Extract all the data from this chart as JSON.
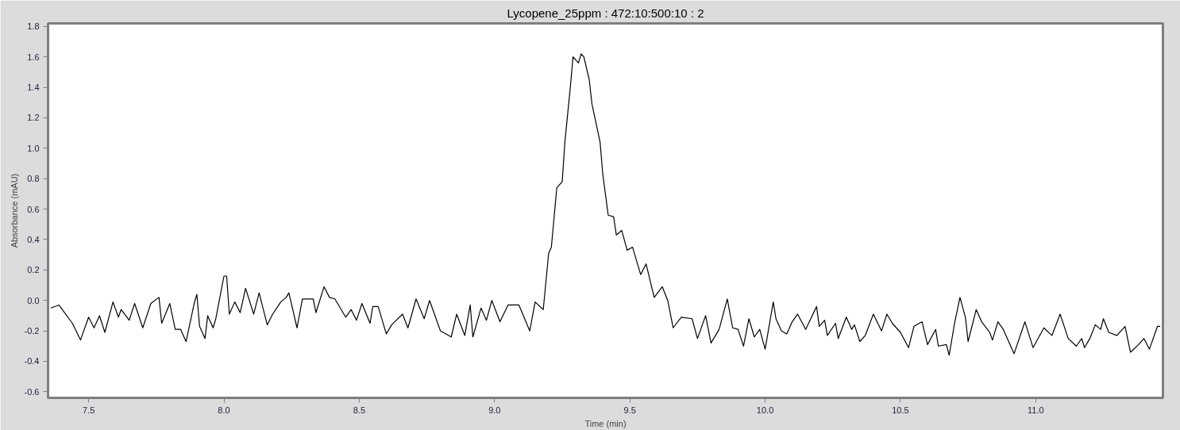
{
  "chart_data": {
    "type": "line",
    "title": "Lycopene_25ppm : 472:10:500:10 : 2",
    "xlabel": "Time (min)",
    "ylabel": "Absorbance (mAU)",
    "xlim": [
      7.35,
      11.47
    ],
    "ylim": [
      -0.64,
      1.82
    ],
    "xticks": [
      7.5,
      {
        "value": 8,
        "label": "8.0"
      },
      8.5,
      {
        "value": 9,
        "label": "9.0"
      },
      9.5,
      {
        "value": 10,
        "label": "10.0"
      },
      10.5,
      {
        "value": 11,
        "label": "11.0"
      }
    ],
    "yticks": [
      -0.6,
      -0.4,
      -0.2,
      {
        "value": 0,
        "label": "0.0"
      },
      0.2,
      0.4,
      0.6,
      0.8,
      {
        "value": 1,
        "label": "1.0"
      },
      1.2,
      1.4,
      1.6,
      1.8
    ],
    "grid": false,
    "line_style": "solid",
    "series": [
      {
        "color": "#000000",
        "x": [
          7.36,
          7.39,
          7.44,
          7.47,
          7.5,
          7.52,
          7.54,
          7.56,
          7.59,
          7.61,
          7.62,
          7.65,
          7.67,
          7.7,
          7.73,
          7.76,
          7.77,
          7.8,
          7.82,
          7.84,
          7.86,
          7.89,
          7.9,
          7.91,
          7.93,
          7.94,
          7.96,
          7.97,
          8.0,
          8.01,
          8.02,
          8.04,
          8.06,
          8.08,
          8.11,
          8.13,
          8.16,
          8.18,
          8.21,
          8.23,
          8.24,
          8.27,
          8.29,
          8.33,
          8.34,
          8.37,
          8.39,
          8.41,
          8.45,
          8.47,
          8.49,
          8.51,
          8.54,
          8.55,
          8.57,
          8.6,
          8.62,
          8.66,
          8.68,
          8.71,
          8.74,
          8.76,
          8.79,
          8.8,
          8.84,
          8.86,
          8.89,
          8.91,
          8.92,
          8.95,
          8.97,
          8.99,
          9.02,
          9.05,
          9.09,
          9.13,
          9.15,
          9.18,
          9.2,
          9.21,
          9.23,
          9.25,
          9.26,
          9.28,
          9.29,
          9.31,
          9.32,
          9.33,
          9.35,
          9.36,
          9.39,
          9.4,
          9.42,
          9.44,
          9.45,
          9.47,
          9.49,
          9.51,
          9.54,
          9.56,
          9.59,
          9.62,
          9.64,
          9.66,
          9.69,
          9.73,
          9.75,
          9.78,
          9.8,
          9.83,
          9.86,
          9.88,
          9.9,
          9.92,
          9.94,
          9.96,
          9.98,
          10.0,
          10.03,
          10.04,
          10.06,
          10.08,
          10.1,
          10.12,
          10.15,
          10.19,
          10.2,
          10.22,
          10.23,
          10.26,
          10.27,
          10.3,
          10.32,
          10.33,
          10.35,
          10.37,
          10.4,
          10.43,
          10.45,
          10.47,
          10.5,
          10.53,
          10.55,
          10.58,
          10.6,
          10.63,
          10.64,
          10.67,
          10.68,
          10.7,
          10.72,
          10.74,
          10.75,
          10.78,
          10.8,
          10.83,
          10.84,
          10.86,
          10.88,
          10.92,
          10.96,
          10.99,
          11.03,
          11.06,
          11.09,
          11.12,
          11.15,
          11.17,
          11.18,
          11.2,
          11.22,
          11.24,
          11.25,
          11.27,
          11.3,
          11.33,
          11.35,
          11.38,
          11.4,
          11.42,
          11.45,
          11.46
        ],
        "values": [
          -0.05,
          -0.03,
          -0.15,
          -0.26,
          -0.11,
          -0.18,
          -0.1,
          -0.21,
          -0.01,
          -0.11,
          -0.06,
          -0.13,
          -0.02,
          -0.18,
          -0.02,
          0.02,
          -0.15,
          -0.02,
          -0.19,
          -0.19,
          -0.27,
          -0.02,
          0.04,
          -0.17,
          -0.25,
          -0.1,
          -0.18,
          -0.12,
          0.16,
          0.16,
          -0.09,
          -0.01,
          -0.08,
          0.08,
          -0.09,
          0.05,
          -0.16,
          -0.09,
          -0.01,
          0.02,
          0.05,
          -0.18,
          0.01,
          0.01,
          -0.08,
          0.09,
          0.02,
          0.01,
          -0.11,
          -0.06,
          -0.13,
          -0.02,
          -0.15,
          -0.04,
          -0.04,
          -0.22,
          -0.16,
          -0.09,
          -0.18,
          0.01,
          -0.12,
          0.0,
          -0.15,
          -0.2,
          -0.24,
          -0.09,
          -0.23,
          -0.03,
          -0.24,
          -0.05,
          -0.13,
          0.0,
          -0.14,
          -0.03,
          -0.03,
          -0.2,
          -0.01,
          -0.06,
          0.31,
          0.35,
          0.74,
          0.78,
          1.04,
          1.4,
          1.6,
          1.56,
          1.62,
          1.6,
          1.45,
          1.29,
          1.04,
          0.83,
          0.56,
          0.55,
          0.43,
          0.46,
          0.33,
          0.35,
          0.17,
          0.24,
          0.02,
          0.09,
          0.0,
          -0.18,
          -0.11,
          -0.12,
          -0.25,
          -0.1,
          -0.28,
          -0.19,
          0.01,
          -0.18,
          -0.19,
          -0.3,
          -0.12,
          -0.24,
          -0.19,
          -0.32,
          -0.01,
          -0.12,
          -0.2,
          -0.22,
          -0.14,
          -0.09,
          -0.19,
          -0.04,
          -0.17,
          -0.13,
          -0.23,
          -0.15,
          -0.25,
          -0.11,
          -0.19,
          -0.16,
          -0.27,
          -0.23,
          -0.09,
          -0.2,
          -0.09,
          -0.15,
          -0.21,
          -0.31,
          -0.17,
          -0.14,
          -0.29,
          -0.19,
          -0.3,
          -0.29,
          -0.36,
          -0.15,
          0.02,
          -0.11,
          -0.27,
          -0.06,
          -0.14,
          -0.21,
          -0.26,
          -0.14,
          -0.19,
          -0.35,
          -0.14,
          -0.31,
          -0.18,
          -0.23,
          -0.09,
          -0.25,
          -0.3,
          -0.25,
          -0.31,
          -0.25,
          -0.16,
          -0.19,
          -0.12,
          -0.21,
          -0.23,
          -0.17,
          -0.34,
          -0.29,
          -0.25,
          -0.32,
          -0.17,
          -0.17
        ]
      }
    ]
  }
}
